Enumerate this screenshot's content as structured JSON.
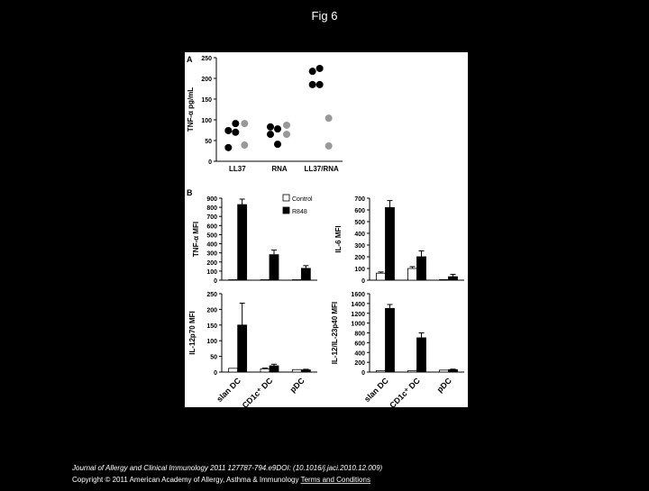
{
  "title": "Fig 6",
  "figure": {
    "panel_labels": [
      "A",
      "B"
    ]
  },
  "chart_data": [
    {
      "type": "dot",
      "ylabel": "TNF-α pg/mL",
      "categories": [
        "LL37",
        "RNA",
        "LL37/RNA"
      ],
      "ylim": [
        0,
        250
      ],
      "yticks": [
        0,
        50,
        100,
        150,
        200,
        250
      ],
      "series": [
        {
          "color": "#000000",
          "values": [
            [
              74,
              91,
              33,
              70
            ],
            [
              83,
              78,
              65,
              41
            ],
            [
              217,
              224,
              185,
              185
            ]
          ]
        },
        {
          "color": "#999999",
          "values": [
            [
              91,
              39
            ],
            [
              87,
              65
            ],
            [
              104,
              37
            ]
          ]
        }
      ]
    },
    {
      "type": "bar",
      "ylabel": "TNF-α MFI",
      "ylim": [
        0,
        900
      ],
      "yticks": [
        0,
        100,
        200,
        300,
        400,
        500,
        600,
        700,
        800,
        900
      ],
      "series": [
        {
          "name": "Control",
          "color": "#ffffff",
          "values": [
            5,
            5,
            5
          ],
          "errors": [
            null,
            null,
            null
          ]
        },
        {
          "name": "R848",
          "color": "#000000",
          "values": [
            830,
            280,
            130
          ],
          "errors": [
            60,
            50,
            30
          ]
        }
      ]
    },
    {
      "type": "bar",
      "ylabel": "IL-6 MFI",
      "ylim": [
        0,
        700
      ],
      "yticks": [
        0,
        100,
        200,
        300,
        400,
        500,
        600,
        700
      ],
      "legend": "top-left",
      "series": [
        {
          "name": "Control",
          "color": "#ffffff",
          "values": [
            60,
            100,
            5
          ],
          "errors": [
            10,
            15,
            null
          ]
        },
        {
          "name": "R848",
          "color": "#000000",
          "values": [
            620,
            200,
            30
          ],
          "errors": [
            60,
            50,
            20
          ]
        }
      ]
    },
    {
      "type": "bar",
      "ylabel": "IL-12p70 MFI",
      "categories": [
        "slan DC",
        "CD1c⁺ DC",
        "pDC"
      ],
      "ylim": [
        0,
        250
      ],
      "yticks": [
        0,
        50,
        100,
        150,
        200,
        250
      ],
      "series": [
        {
          "name": "Control",
          "color": "#ffffff",
          "values": [
            12,
            10,
            8
          ],
          "errors": [
            null,
            3,
            null
          ]
        },
        {
          "name": "R848",
          "color": "#000000",
          "values": [
            150,
            20,
            7
          ],
          "errors": [
            70,
            5,
            2
          ]
        }
      ]
    },
    {
      "type": "bar",
      "ylabel": "IL-12/IL-23p40 MFI",
      "categories": [
        "slan DC",
        "CD1c⁺ DC",
        "pDC"
      ],
      "ylim": [
        0,
        1600
      ],
      "yticks": [
        0,
        200,
        400,
        600,
        800,
        1000,
        1200,
        1400,
        1600
      ],
      "series": [
        {
          "name": "Control",
          "color": "#ffffff",
          "values": [
            30,
            30,
            40
          ],
          "errors": [
            null,
            null,
            null
          ]
        },
        {
          "name": "R848",
          "color": "#000000",
          "values": [
            1300,
            700,
            50
          ],
          "errors": [
            80,
            100,
            10
          ]
        }
      ]
    }
  ],
  "footer": {
    "citation": "Journal of Allergy and Clinical Immunology 2011 127787-794.e9DOI: (10.1016/j.jaci.2010.12.009)",
    "copyright": "Copyright © 2011 American Academy of Allergy, Asthma & Immunology",
    "link": "Terms and Conditions"
  }
}
